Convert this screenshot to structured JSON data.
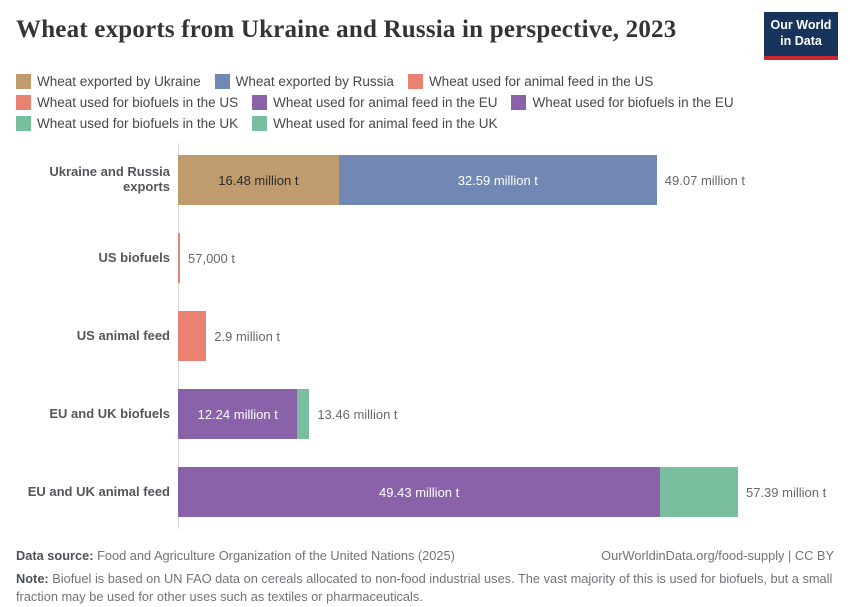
{
  "title": "Wheat exports from Ukraine and Russia in perspective, 2023",
  "logo": {
    "line1": "Our World",
    "line2": "in Data"
  },
  "colors": {
    "ukraine_tan": "#BF9B6E",
    "russia_blue": "#7188B4",
    "us_salmon": "#E98271",
    "eu_purple": "#8962AA",
    "uk_green": "#79BE9E",
    "axis_line": "#dcdcdc",
    "logo_navy": "#17355c",
    "logo_red": "#cc2631"
  },
  "legend": [
    {
      "label": "Wheat exported by Ukraine",
      "color": "#BF9B6E"
    },
    {
      "label": "Wheat exported by Russia",
      "color": "#7188B4"
    },
    {
      "label": "Wheat used for animal feed in the US",
      "color": "#E98271"
    },
    {
      "label": "Wheat used for biofuels in the US",
      "color": "#E98271"
    },
    {
      "label": "Wheat used for animal feed in the EU",
      "color": "#8962AA"
    },
    {
      "label": "Wheat used for biofuels in the EU",
      "color": "#8962AA"
    },
    {
      "label": "Wheat used for biofuels in the UK",
      "color": "#79BE9E"
    },
    {
      "label": "Wheat used for animal feed in the UK",
      "color": "#79BE9E"
    }
  ],
  "chart_data": {
    "type": "bar",
    "orientation": "horizontal_stacked",
    "unit": "million tonnes",
    "x_max": 57.39,
    "grid": false,
    "legend_position": "top",
    "categories": [
      "Ukraine and Russia exports",
      "US biofuels",
      "US animal feed",
      "EU and UK biofuels",
      "EU and UK animal feed"
    ],
    "rows": [
      {
        "label": "Ukraine and Russia exports",
        "total": 49.07,
        "total_label": "49.07 million t",
        "segments": [
          {
            "name": "Wheat exported by Ukraine",
            "value": 16.48,
            "label": "16.48 million t",
            "color": "#BF9B6E",
            "label_tone": "dark"
          },
          {
            "name": "Wheat exported by Russia",
            "value": 32.59,
            "label": "32.59 million t",
            "color": "#7188B4",
            "label_tone": "light"
          }
        ]
      },
      {
        "label": "US biofuels",
        "total": 0.057,
        "total_label": "57,000 t",
        "segments": [
          {
            "name": "Wheat used for biofuels in the US",
            "value": 0.057,
            "label": "",
            "color": "#E98271",
            "label_tone": "light"
          }
        ]
      },
      {
        "label": "US animal feed",
        "total": 2.9,
        "total_label": "2.9 million t",
        "segments": [
          {
            "name": "Wheat used for animal feed in the US",
            "value": 2.9,
            "label": "",
            "color": "#E98271",
            "label_tone": "light"
          }
        ]
      },
      {
        "label": "EU and UK biofuels",
        "total": 13.46,
        "total_label": "13.46 million t",
        "segments": [
          {
            "name": "Wheat used for biofuels in the EU",
            "value": 12.24,
            "label": "12.24 million t",
            "color": "#8962AA",
            "label_tone": "light"
          },
          {
            "name": "Wheat used for biofuels in the UK",
            "value": 1.22,
            "label": "",
            "color": "#79BE9E",
            "label_tone": "light"
          }
        ]
      },
      {
        "label": "EU and UK animal feed",
        "total": 57.39,
        "total_label": "57.39 million t",
        "segments": [
          {
            "name": "Wheat used for animal feed in the EU",
            "value": 49.43,
            "label": "49.43 million t",
            "color": "#8962AA",
            "label_tone": "light"
          },
          {
            "name": "Wheat used for animal feed in the UK",
            "value": 7.96,
            "label": "",
            "color": "#79BE9E",
            "label_tone": "light"
          }
        ]
      }
    ]
  },
  "footer": {
    "source_label": "Data source:",
    "source_text": " Food and Agriculture Organization of the United Nations (2025)",
    "link": "OurWorldinData.org/food-supply | CC BY",
    "note_label": "Note:",
    "note_text": " Biofuel is based on UN FAO data on cereals allocated to non-food industrial uses. The vast majority of this is used for biofuels, but a small fraction may be used for other uses such as textiles or pharmaceuticals."
  }
}
